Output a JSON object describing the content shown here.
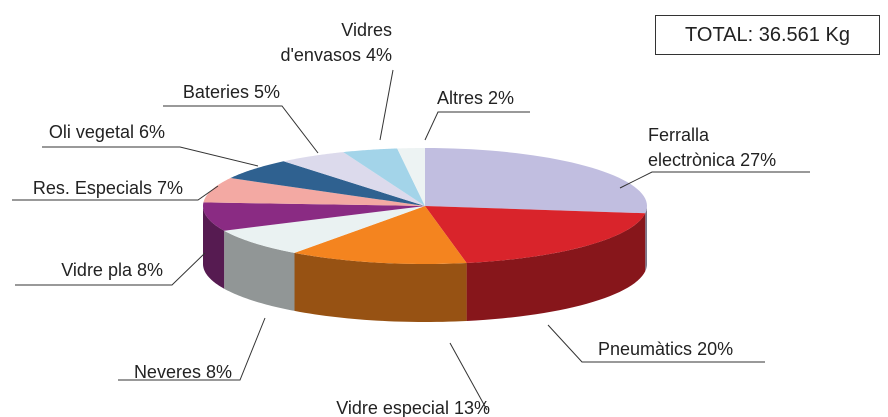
{
  "chart_data": {
    "type": "pie3d",
    "categories": [
      "Ferralla electrònica",
      "Pneumàtics",
      "Vidre especial",
      "Neveres",
      "Vidre pla",
      "Res. Especials",
      "Oli vegetal",
      "Bateries",
      "Vidres d'envasos",
      "Altres"
    ],
    "values": [
      27,
      20,
      13,
      8,
      8,
      7,
      6,
      5,
      4,
      2
    ],
    "value_labels": [
      "27%",
      "20%",
      "13%",
      "8%",
      "8%",
      "7%",
      "6%",
      "5%",
      "4%",
      "2%"
    ],
    "colors": [
      "#c1bee0",
      "#d9242b",
      "#f4841f",
      "#eaf2f2",
      "#8a2b83",
      "#f3a9a3",
      "#2f6190",
      "#dcdaec",
      "#a3d4e9",
      "#edf3f3"
    ],
    "annotation": "TOTAL: 36.561 Kg"
  }
}
